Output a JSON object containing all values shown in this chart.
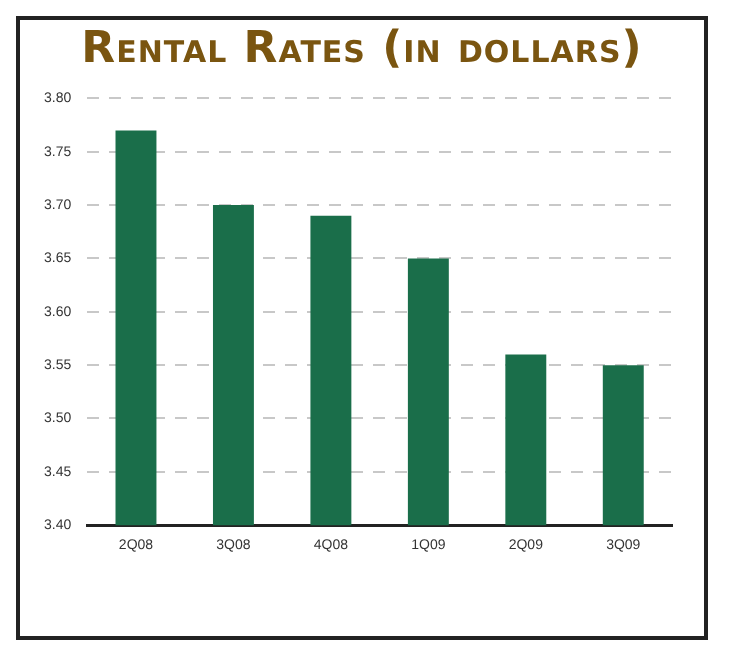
{
  "chart_data": {
    "type": "bar",
    "title": "Rental Rates (in dollars)",
    "categories": [
      "2Q08",
      "3Q08",
      "4Q08",
      "1Q09",
      "2Q09",
      "3Q09"
    ],
    "values": [
      3.77,
      3.7,
      3.69,
      3.65,
      3.56,
      3.55
    ],
    "color": "#1a6e4a",
    "ylim": [
      3.4,
      3.8
    ],
    "yticks": [
      {
        "value": 3.4,
        "label": "3.40"
      },
      {
        "value": 3.45,
        "label": "3.45"
      },
      {
        "value": 3.5,
        "label": "3.50"
      },
      {
        "value": 3.55,
        "label": "3.55"
      },
      {
        "value": 3.6,
        "label": "3.60"
      },
      {
        "value": 3.65,
        "label": "3.65"
      },
      {
        "value": 3.7,
        "label": "3.70"
      },
      {
        "value": 3.75,
        "label": "3.75"
      },
      {
        "value": 3.8,
        "label": "3.80"
      }
    ],
    "grid": "y"
  }
}
